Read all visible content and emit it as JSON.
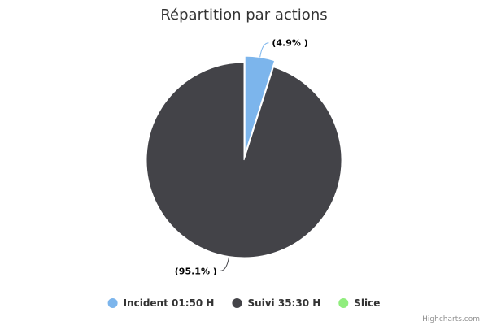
{
  "chart_data": {
    "type": "pie",
    "title": "Répartition par actions",
    "series": [
      {
        "name": "Incident 01:50 H",
        "value": 4.9,
        "label": "(4.9% )",
        "color": "#7cb5ec",
        "sliced": true
      },
      {
        "name": "Suivi 35:30 H",
        "value": 95.1,
        "label": "(95.1% )",
        "color": "#434348",
        "sliced": false
      },
      {
        "name": "Slice",
        "value": 0,
        "label": "",
        "color": "#90ed7d",
        "sliced": false
      }
    ],
    "legend_position": "bottom-center",
    "credits": "Highcharts.com"
  }
}
